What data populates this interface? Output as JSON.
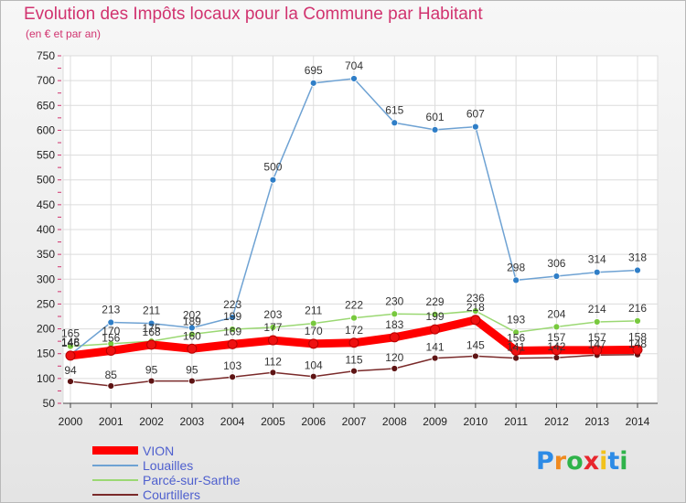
{
  "title": "Evolution des Impôts locaux pour la Commune par Habitant",
  "subtitle": "(en € et par an)",
  "brand": {
    "letters": [
      "P",
      "r",
      "o",
      "x",
      "i",
      "t",
      "i"
    ],
    "colors": [
      "#2d8be6",
      "#f08a1f",
      "#2fb34a",
      "#e8262d",
      "#f2c21b",
      "#2d8be6",
      "#2fb34a"
    ]
  },
  "chart_data": {
    "type": "line",
    "title": "Evolution des Impôts locaux pour la Commune par Habitant",
    "subtitle": "(en € et par an)",
    "xlabel": "",
    "ylabel": "",
    "categories": [
      "2000",
      "2001",
      "2002",
      "2003",
      "2004",
      "2005",
      "2006",
      "2007",
      "2008",
      "2009",
      "2010",
      "2011",
      "2012",
      "2013",
      "2014"
    ],
    "ylim": [
      50,
      750
    ],
    "yticks": [
      "50",
      "100",
      "150",
      "200",
      "250",
      "300",
      "350",
      "400",
      "450",
      "500",
      "550",
      "600",
      "650",
      "700",
      "750"
    ],
    "grid": true,
    "legend_position": "bottom-left",
    "series": [
      {
        "name": "VION",
        "color": "#ff0000",
        "marker": "#ee1111",
        "width": 9,
        "values": [
          146,
          156,
          168,
          160,
          169,
          177,
          170,
          172,
          183,
          199,
          218,
          156,
          157,
          157,
          158
        ],
        "labels": [
          "146",
          "156",
          "168",
          "160",
          "169",
          "177",
          "170",
          "172",
          "183",
          "199",
          "218",
          "156",
          "157",
          "157",
          "158"
        ]
      },
      {
        "name": "Louailles",
        "color": "#6ea2d3",
        "marker": "#2f7ec7",
        "width": 1.5,
        "values": [
          148,
          213,
          211,
          202,
          223,
          500,
          695,
          704,
          615,
          601,
          607,
          298,
          306,
          314,
          318
        ],
        "labels": [
          "148",
          "213",
          "211",
          "202",
          "223",
          "500",
          "695",
          "704",
          "615",
          "601",
          "607",
          "298",
          "306",
          "314",
          "318"
        ]
      },
      {
        "name": "Parcé-sur-Sarthe",
        "color": "#9bd873",
        "marker": "#78c93e",
        "width": 1.5,
        "values": [
          165,
          170,
          175,
          189,
          199,
          203,
          211,
          222,
          230,
          229,
          236,
          193,
          204,
          214,
          216
        ],
        "labels": [
          "165",
          "170",
          "175",
          "189",
          "199",
          "203",
          "211",
          "222",
          "230",
          "229",
          "236",
          "193",
          "204",
          "214",
          "216"
        ]
      },
      {
        "name": "Courtillers",
        "color": "#7a2a2a",
        "marker": "#5e1414",
        "width": 1.5,
        "values": [
          94,
          85,
          95,
          95,
          103,
          112,
          104,
          115,
          120,
          141,
          145,
          141,
          142,
          147,
          148
        ],
        "labels": [
          "94",
          "85",
          "95",
          "95",
          "103",
          "112",
          "104",
          "115",
          "120",
          "141",
          "145",
          "141",
          "142",
          "147",
          "148"
        ]
      }
    ]
  }
}
